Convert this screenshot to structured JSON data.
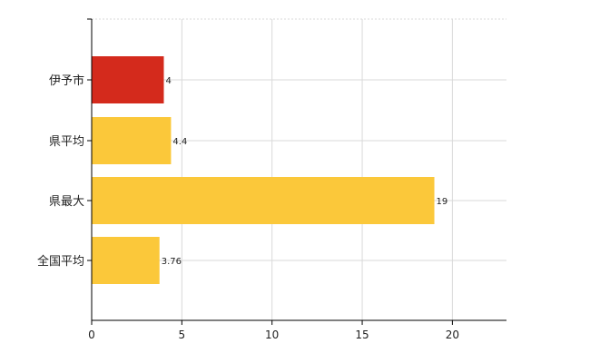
{
  "chart_data": {
    "type": "bar",
    "orientation": "horizontal",
    "categories": [
      "伊予市",
      "県平均",
      "県最大",
      "全国平均"
    ],
    "values": [
      4,
      4.4,
      19,
      3.76
    ],
    "value_labels": [
      "4",
      "4.4",
      "19",
      "3.76"
    ],
    "bar_colors": [
      "#d42a1c",
      "#fbc83a",
      "#fbc83a",
      "#fbc83a"
    ],
    "x_ticks": [
      0,
      5,
      10,
      15,
      20
    ],
    "x_tick_labels": [
      "0",
      "5",
      "10",
      "15",
      "20"
    ],
    "xlim": [
      0,
      23
    ],
    "grid": true,
    "title": "",
    "xlabel": "",
    "ylabel": ""
  }
}
